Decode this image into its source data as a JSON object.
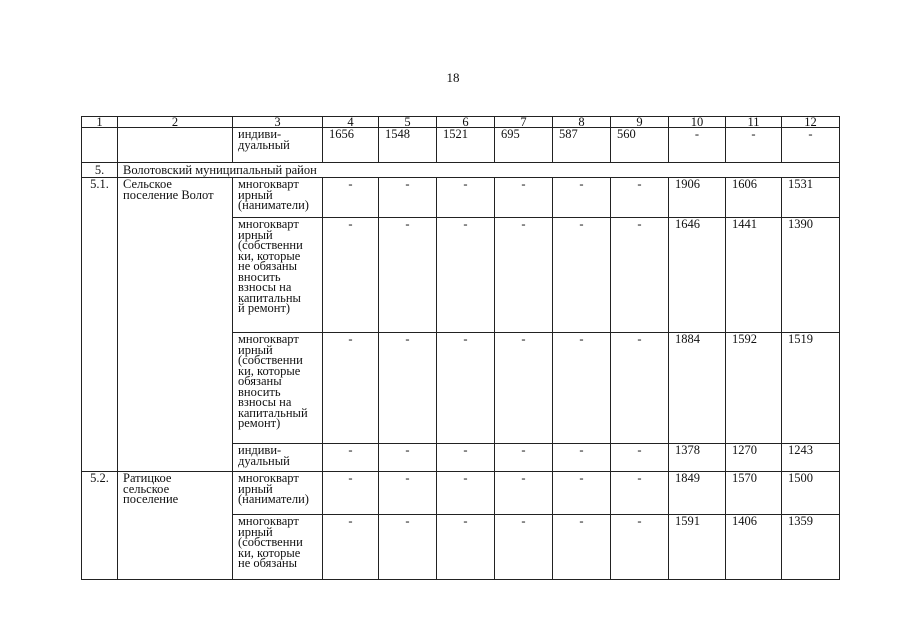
{
  "page_number": "18",
  "table": {
    "header": [
      "1",
      "2",
      "3",
      "4",
      "5",
      "6",
      "7",
      "8",
      "9",
      "10",
      "11",
      "12"
    ],
    "continuation_row": {
      "type": "индиви-\nдуальный",
      "values": [
        "1656",
        "1548",
        "1521",
        "695",
        "587",
        "560",
        "-",
        "-",
        "-"
      ]
    },
    "section": {
      "num": "5.",
      "title": "Волотовский муниципальный район"
    },
    "settlements": [
      {
        "num": "5.1.",
        "name": "Сельское\nпоселение Волот",
        "rows": [
          {
            "type": "многокварт\nирный\n(наниматели)",
            "values": [
              "-",
              "-",
              "-",
              "-",
              "-",
              "-",
              "1906",
              "1606",
              "1531"
            ]
          },
          {
            "type": "многокварт\nирный\n(собственни\nки, которые\nне обязаны\nвносить\nвзносы на\nкапитальны\nй ремонт)",
            "values": [
              "-",
              "-",
              "-",
              "-",
              "-",
              "-",
              "1646",
              "1441",
              "1390"
            ]
          },
          {
            "type": "многокварт\nирный\n(собственни\nки, которые\nобязаны\nвносить\nвзносы на\nкапитальный\nремонт)",
            "values": [
              "-",
              "-",
              "-",
              "-",
              "-",
              "-",
              "1884",
              "1592",
              "1519"
            ]
          },
          {
            "type": "индиви-\nдуальный",
            "values": [
              "-",
              "-",
              "-",
              "-",
              "-",
              "-",
              "1378",
              "1270",
              "1243"
            ]
          }
        ]
      },
      {
        "num": "5.2.",
        "name": "Ратицкое\nсельское\nпоселение",
        "rows": [
          {
            "type": "многокварт\nирный\n(наниматели)",
            "values": [
              "-",
              "-",
              "-",
              "-",
              "-",
              "-",
              "1849",
              "1570",
              "1500"
            ]
          },
          {
            "type": "многокварт\nирный\n(собственни\nки, которые\nне обязаны",
            "values": [
              "-",
              "-",
              "-",
              "-",
              "-",
              "-",
              "1591",
              "1406",
              "1359"
            ]
          }
        ]
      }
    ]
  }
}
